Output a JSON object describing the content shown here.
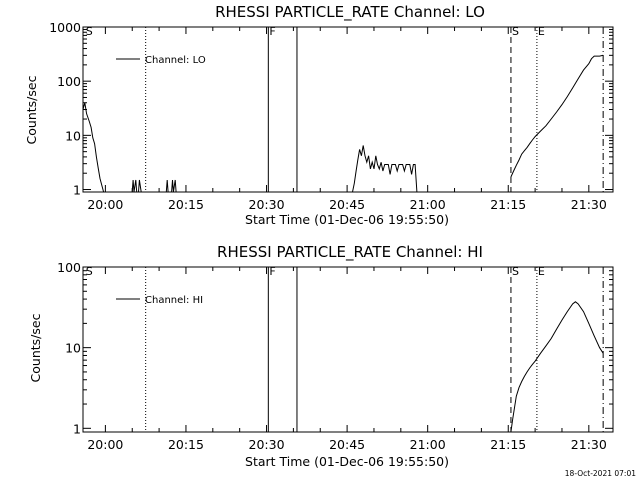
{
  "timestamp": "18-Oct-2021 07:01",
  "chart_data": [
    {
      "type": "line",
      "title": "RHESSI PARTICLE_RATE Channel: LO",
      "xlabel": "Start Time (01-Dec-06 19:55:50)",
      "ylabel": "Counts/sec",
      "yscale": "log",
      "xlim": [
        "19:55:50",
        "21:34:30"
      ],
      "ylim": [
        0.9,
        1000
      ],
      "xticks": [
        "20:00",
        "20:15",
        "20:30",
        "20:45",
        "21:00",
        "21:15",
        "21:30"
      ],
      "yticks": [
        "1",
        "10",
        "100",
        "1000"
      ],
      "legend": {
        "position": "top-left",
        "entries": [
          "Channel: LO"
        ]
      },
      "markers": [
        {
          "time": "19:56:10",
          "label": "S",
          "style": "none"
        },
        {
          "time": "20:07:30",
          "label": "",
          "style": "dotted"
        },
        {
          "time": "20:30:20",
          "label": "F",
          "style": "solid"
        },
        {
          "time": "20:35:40",
          "label": "",
          "style": "solid"
        },
        {
          "time": "21:15:30",
          "label": "S",
          "style": "dashed"
        },
        {
          "time": "21:20:20",
          "label": "E",
          "style": "dotted"
        },
        {
          "time": "21:32:40",
          "label": "",
          "style": "dashdot"
        }
      ],
      "series": [
        {
          "name": "Channel: LO",
          "segments": [
            [
              [
                "19:55:50",
                30
              ],
              [
                "19:56:10",
                40
              ],
              [
                "19:56:30",
                25
              ],
              [
                "19:57:00",
                18
              ],
              [
                "19:57:20",
                14
              ],
              [
                "19:57:40",
                9
              ],
              [
                "19:58:00",
                7
              ],
              [
                "19:58:20",
                4
              ],
              [
                "19:58:40",
                2.5
              ],
              [
                "19:59:00",
                1.6
              ],
              [
                "19:59:20",
                1.2
              ],
              [
                "19:59:40",
                0.9
              ]
            ],
            [
              [
                "20:05:00",
                0.9
              ],
              [
                "20:05:10",
                1.5
              ],
              [
                "20:05:20",
                0.9
              ],
              [
                "20:05:40",
                1.5
              ],
              [
                "20:05:50",
                0.9
              ]
            ],
            [
              [
                "20:06:10",
                0.9
              ],
              [
                "20:06:20",
                1.5
              ],
              [
                "20:06:40",
                0.9
              ]
            ],
            [
              [
                "20:11:20",
                0.9
              ],
              [
                "20:11:30",
                1.5
              ],
              [
                "20:11:40",
                0.9
              ]
            ],
            [
              [
                "20:12:20",
                0.9
              ],
              [
                "20:12:30",
                1.5
              ],
              [
                "20:12:40",
                0.9
              ],
              [
                "20:13:00",
                1.5
              ],
              [
                "20:13:10",
                0.9
              ]
            ],
            [
              [
                "20:46:00",
                0.9
              ],
              [
                "20:46:20",
                1.3
              ],
              [
                "20:46:40",
                2.2
              ],
              [
                "20:47:00",
                3.5
              ],
              [
                "20:47:20",
                5.5
              ],
              [
                "20:47:40",
                4.2
              ],
              [
                "20:48:00",
                6.5
              ],
              [
                "20:48:20",
                4.2
              ],
              [
                "20:48:40",
                3.2
              ],
              [
                "20:49:00",
                4.2
              ],
              [
                "20:49:20",
                2.4
              ],
              [
                "20:49:40",
                3.2
              ],
              [
                "20:50:00",
                2.4
              ],
              [
                "20:50:20",
                4.2
              ],
              [
                "20:50:40",
                2.9
              ],
              [
                "20:51:00",
                2.4
              ],
              [
                "20:51:20",
                3.2
              ],
              [
                "20:51:40",
                2.2
              ],
              [
                "20:52:00",
                2.9
              ],
              [
                "20:52:40",
                2.9
              ],
              [
                "20:53:00",
                1.9
              ],
              [
                "20:53:20",
                2.9
              ],
              [
                "20:54:00",
                2.9
              ],
              [
                "20:54:20",
                2.2
              ],
              [
                "20:54:40",
                2.9
              ],
              [
                "20:55:20",
                2.9
              ],
              [
                "20:55:40",
                2.2
              ],
              [
                "20:56:00",
                2.9
              ],
              [
                "20:56:40",
                2.9
              ],
              [
                "20:57:00",
                1.9
              ],
              [
                "20:57:20",
                2.9
              ],
              [
                "20:57:40",
                2.9
              ],
              [
                "20:58:00",
                0.9
              ]
            ],
            [
              [
                "21:15:30",
                1.7
              ],
              [
                "21:16:00",
                2.2
              ],
              [
                "21:16:30",
                2.8
              ],
              [
                "21:17:00",
                3.5
              ],
              [
                "21:17:30",
                4.5
              ],
              [
                "21:18:00",
                5.2
              ],
              [
                "21:18:30",
                6.0
              ],
              [
                "21:19:00",
                7.0
              ],
              [
                "21:19:30",
                8.2
              ],
              [
                "21:20:00",
                9.5
              ],
              [
                "21:21:00",
                12
              ],
              [
                "21:22:00",
                15
              ],
              [
                "21:23:00",
                20
              ],
              [
                "21:24:00",
                27
              ],
              [
                "21:25:00",
                37
              ],
              [
                "21:26:00",
                52
              ],
              [
                "21:27:00",
                75
              ],
              [
                "21:28:00",
                110
              ],
              [
                "21:29:00",
                160
              ],
              [
                "21:30:00",
                210
              ],
              [
                "21:30:30",
                260
              ],
              [
                "21:31:00",
                290
              ],
              [
                "21:32:00",
                290
              ],
              [
                "21:32:40",
                300
              ]
            ]
          ]
        }
      ]
    },
    {
      "type": "line",
      "title": "RHESSI PARTICLE_RATE Channel: HI",
      "xlabel": "Start Time (01-Dec-06 19:55:50)",
      "ylabel": "Counts/sec",
      "yscale": "log",
      "xlim": [
        "19:55:50",
        "21:34:30"
      ],
      "ylim": [
        0.9,
        100
      ],
      "xticks": [
        "20:00",
        "20:15",
        "20:30",
        "20:45",
        "21:00",
        "21:15",
        "21:30"
      ],
      "yticks": [
        "1",
        "10",
        "100"
      ],
      "legend": {
        "position": "top-left",
        "entries": [
          "Channel: HI"
        ]
      },
      "markers": [
        {
          "time": "19:56:10",
          "label": "S",
          "style": "none"
        },
        {
          "time": "20:07:30",
          "label": "",
          "style": "dotted"
        },
        {
          "time": "20:30:20",
          "label": "F",
          "style": "solid"
        },
        {
          "time": "20:35:40",
          "label": "",
          "style": "solid"
        },
        {
          "time": "21:15:30",
          "label": "S",
          "style": "dashed"
        },
        {
          "time": "21:20:20",
          "label": "E",
          "style": "dotted"
        },
        {
          "time": "21:32:40",
          "label": "",
          "style": "dashdot"
        }
      ],
      "series": [
        {
          "name": "Channel: HI",
          "segments": [
            [
              [
                "21:15:30",
                0.9
              ],
              [
                "21:15:50",
                1.3
              ],
              [
                "21:16:10",
                1.8
              ],
              [
                "21:16:30",
                2.5
              ],
              [
                "21:17:00",
                3.2
              ],
              [
                "21:17:30",
                3.8
              ],
              [
                "21:18:00",
                4.4
              ],
              [
                "21:18:30",
                5.0
              ],
              [
                "21:19:00",
                5.6
              ],
              [
                "21:19:30",
                6.2
              ],
              [
                "21:20:00",
                6.8
              ],
              [
                "21:21:00",
                8.5
              ],
              [
                "21:22:00",
                10.5
              ],
              [
                "21:23:00",
                13
              ],
              [
                "21:24:00",
                17
              ],
              [
                "21:25:00",
                22
              ],
              [
                "21:26:00",
                28
              ],
              [
                "21:27:00",
                35
              ],
              [
                "21:27:30",
                37
              ],
              [
                "21:28:00",
                35
              ],
              [
                "21:29:00",
                28
              ],
              [
                "21:30:00",
                20
              ],
              [
                "21:31:00",
                14
              ],
              [
                "21:32:00",
                10
              ],
              [
                "21:32:40",
                8.5
              ]
            ]
          ]
        }
      ]
    }
  ]
}
